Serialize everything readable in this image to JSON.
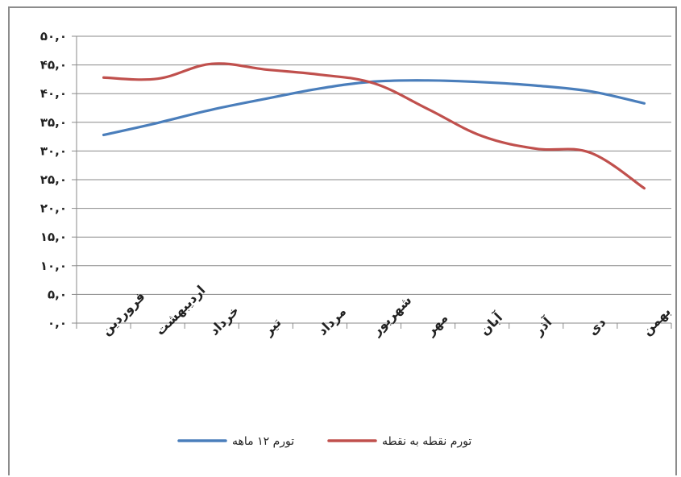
{
  "chart_data": {
    "type": "line",
    "categories": [
      "فروردین",
      "اردیبهشت",
      "خرداد",
      "تیر",
      "مرداد",
      "شهریور",
      "مهر",
      "آبان",
      "آذر",
      "دی",
      "بهمن"
    ],
    "y_tick_labels": [
      "۰,۰",
      "۵,۰",
      "۱۰,۰",
      "۱۵,۰",
      "۲۰,۰",
      "۲۵,۰",
      "۳۰,۰",
      "۳۵,۰",
      "۴۰,۰",
      "۴۵,۰",
      "۵۰,۰"
    ],
    "ylim": [
      0,
      50
    ],
    "grid": true,
    "legend_position": "bottom",
    "series": [
      {
        "name": "تورم ۱۲ ماهه",
        "color": "#4a7ebb",
        "values": [
          32.8,
          34.9,
          37.2,
          39.1,
          40.9,
          42.1,
          42.3,
          42.0,
          41.4,
          40.4,
          38.3
        ]
      },
      {
        "name": "تورم نقطه به نقطه",
        "color": "#c0504d",
        "values": [
          42.8,
          42.6,
          45.2,
          44.2,
          43.3,
          41.8,
          37.3,
          32.6,
          30.4,
          29.7,
          23.5
        ]
      }
    ]
  }
}
